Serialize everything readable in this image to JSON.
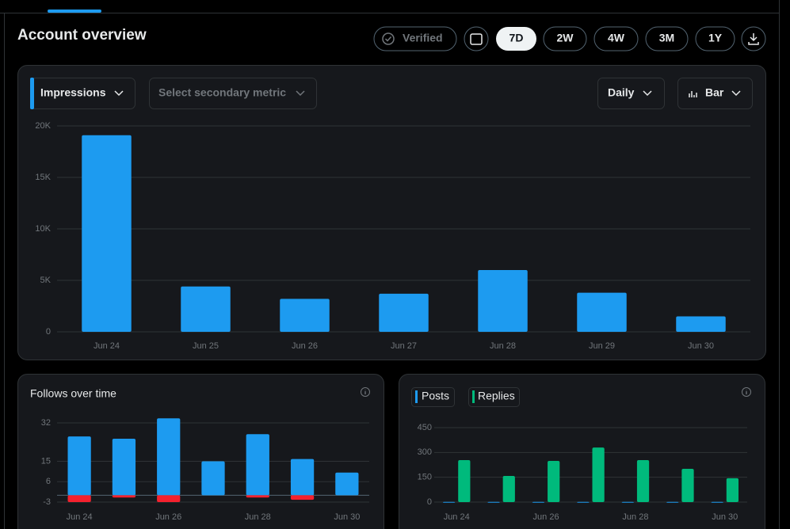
{
  "header": {
    "title": "Account overview",
    "verified": "Verified",
    "ranges": [
      "7D",
      "2W",
      "4W",
      "3M",
      "1Y"
    ]
  },
  "controls": {
    "metric": "Impressions",
    "secondary": "Select secondary metric",
    "interval": "Daily",
    "chart_type": "Bar"
  },
  "chart_data": [
    {
      "type": "bar",
      "categories": [
        "Jun 24",
        "Jun 25",
        "Jun 26",
        "Jun 27",
        "Jun 28",
        "Jun 29",
        "Jun 30"
      ],
      "values": [
        19100,
        4400,
        3200,
        3700,
        6000,
        3800,
        1500
      ],
      "color": "#1d9bf0",
      "ylim": [
        0,
        20000
      ],
      "yticks": [
        0,
        {
          "value": 5000,
          "label": "5K"
        },
        {
          "value": 10000,
          "label": "10K"
        },
        {
          "value": 15000,
          "label": "15K"
        },
        {
          "value": 20000,
          "label": "20K"
        }
      ],
      "grid": true
    },
    {
      "type": "bar",
      "title": "Follows over time",
      "stacked": true,
      "categories": [
        "Jun 24",
        null,
        "Jun 26",
        null,
        "Jun 28",
        null,
        "Jun 30"
      ],
      "series": [
        {
          "color": "#1d9bf0",
          "values": [
            26,
            25,
            34,
            15,
            27,
            16,
            10
          ]
        },
        {
          "color": "#f4212e",
          "values": [
            -3,
            -1,
            -3,
            0,
            -1,
            -2,
            0
          ]
        }
      ],
      "ylim": [
        -4,
        35
      ],
      "yticks": [
        -3,
        6,
        15,
        32
      ],
      "grid": true
    },
    {
      "type": "bar",
      "stacked": false,
      "categories": [
        "Jun 24",
        null,
        "Jun 26",
        null,
        "Jun 28",
        null,
        "Jun 30"
      ],
      "series": [
        {
          "name": "Posts",
          "color": "#1d9bf0",
          "values": [
            1,
            1,
            1,
            1,
            1,
            1,
            1
          ]
        },
        {
          "name": "Replies",
          "color": "#00ba7c",
          "values": [
            254,
            158,
            249,
            330,
            254,
            201,
            144
          ]
        }
      ],
      "ylim": [
        0,
        450
      ],
      "yticks": [
        0,
        150,
        300,
        450
      ],
      "grid": true
    }
  ]
}
